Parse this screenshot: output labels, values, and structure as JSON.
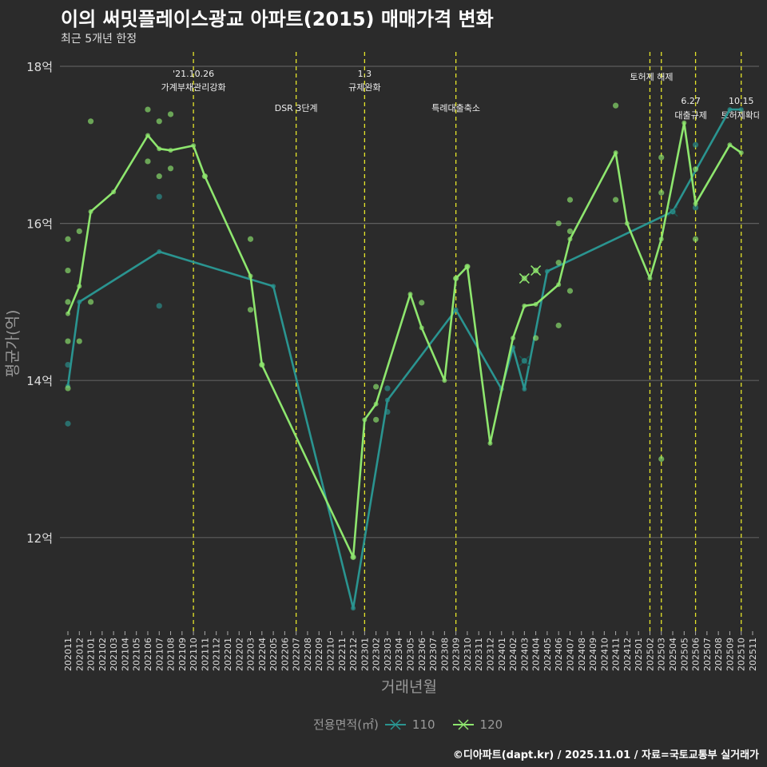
{
  "header": {
    "title": "이의 써밋플레이스광교 아파트(2015) 매매가격 변화",
    "subtitle": "최근 5개년 한정"
  },
  "caption": "©디아파트(dapt.kr) / 2025.11.01 / 자료=국토교통부 실거래가",
  "legend": {
    "title": "전용면적(㎡)",
    "items": [
      "110",
      "120"
    ]
  },
  "colors": {
    "s110": "#2a9490",
    "s120": "#8ee66e",
    "vline": "#e5e52a",
    "grid": "#5e5e5e",
    "bg": "#2b2b2b"
  },
  "chart_data": {
    "type": "line",
    "title": "이의 써밋플레이스광교 아파트(2015) 매매가격 변화",
    "xlabel": "거래년월",
    "ylabel": "평균가(억)",
    "ylim": [
      10.8,
      18.2
    ],
    "yticks": [
      12,
      14,
      16,
      18
    ],
    "ytick_labels": [
      "12억",
      "14억",
      "16억",
      "18억"
    ],
    "x_labels": [
      "202011",
      "202012",
      "202101",
      "202102",
      "202103",
      "202104",
      "202105",
      "202106",
      "202107",
      "202108",
      "202109",
      "202110",
      "202111",
      "202112",
      "202201",
      "202202",
      "202203",
      "202204",
      "202205",
      "202206",
      "202207",
      "202208",
      "202209",
      "202210",
      "202211",
      "202212",
      "202301",
      "202302",
      "202303",
      "202304",
      "202305",
      "202306",
      "202307",
      "202308",
      "202309",
      "202310",
      "202311",
      "202312",
      "202401",
      "202402",
      "202403",
      "202404",
      "202405",
      "202406",
      "202407",
      "202408",
      "202409",
      "202410",
      "202411",
      "202412",
      "202501",
      "202502",
      "202503",
      "202504",
      "202505",
      "202506",
      "202507",
      "202508",
      "202509",
      "202510",
      "202511"
    ],
    "series": [
      {
        "name": "110",
        "points": [
          [
            0,
            13.93
          ],
          [
            1,
            15.0
          ],
          [
            8,
            15.64
          ],
          [
            18,
            15.2
          ],
          [
            25,
            11.1
          ],
          [
            28,
            13.75
          ],
          [
            34,
            14.9
          ],
          [
            38,
            13.89
          ],
          [
            39,
            14.42
          ],
          [
            40,
            13.89
          ],
          [
            42,
            15.39
          ],
          [
            53,
            16.15
          ],
          [
            58,
            17.45
          ],
          [
            59,
            17.45
          ]
        ],
        "scatter": [
          [
            0,
            14.2
          ],
          [
            0,
            13.45
          ],
          [
            8,
            16.34
          ],
          [
            8,
            14.95
          ],
          [
            28,
            13.9
          ],
          [
            28,
            13.6
          ],
          [
            55,
            17.0
          ],
          [
            55,
            16.2
          ]
        ],
        "crosses": [
          [
            40,
            14.25
          ],
          [
            53,
            16.15
          ]
        ]
      },
      {
        "name": "120",
        "points": [
          [
            0,
            14.85
          ],
          [
            1,
            15.2
          ],
          [
            2,
            16.15
          ],
          [
            4,
            16.4
          ],
          [
            7,
            17.12
          ],
          [
            8,
            16.95
          ],
          [
            9,
            16.93
          ],
          [
            11,
            16.99
          ],
          [
            12,
            16.6
          ],
          [
            16,
            15.33
          ],
          [
            17,
            14.2
          ],
          [
            25,
            11.75
          ],
          [
            26,
            13.5
          ],
          [
            27,
            13.7
          ],
          [
            30,
            15.1
          ],
          [
            31,
            14.67
          ],
          [
            33,
            14.0
          ],
          [
            34,
            15.3
          ],
          [
            35,
            15.45
          ],
          [
            37,
            13.2
          ],
          [
            39,
            14.54
          ],
          [
            40,
            14.95
          ],
          [
            41,
            14.97
          ],
          [
            43,
            15.22
          ],
          [
            44,
            15.8
          ],
          [
            48,
            16.9
          ],
          [
            49,
            16.0
          ],
          [
            51,
            15.3
          ],
          [
            52,
            15.8
          ],
          [
            54,
            17.28
          ],
          [
            55,
            16.25
          ],
          [
            58,
            17.0
          ],
          [
            59,
            16.9
          ]
        ],
        "scatter": [
          [
            7,
            17.45
          ],
          [
            9,
            17.39
          ],
          [
            2,
            17.3
          ],
          [
            8,
            17.3
          ],
          [
            7,
            16.79
          ],
          [
            9,
            16.7
          ],
          [
            8,
            16.6
          ],
          [
            12,
            16.6
          ],
          [
            1,
            15.9
          ],
          [
            0,
            15.8
          ],
          [
            16,
            15.8
          ],
          [
            0,
            15.4
          ],
          [
            0,
            15.0
          ],
          [
            2,
            15.0
          ],
          [
            16,
            14.9
          ],
          [
            0,
            14.5
          ],
          [
            1,
            14.5
          ],
          [
            0,
            13.9
          ],
          [
            31,
            14.99
          ],
          [
            27,
            13.92
          ],
          [
            27,
            13.5
          ],
          [
            44,
            15.14
          ],
          [
            43,
            14.7
          ],
          [
            43,
            15.5
          ],
          [
            41,
            14.54
          ],
          [
            48,
            17.5
          ],
          [
            52,
            16.84
          ],
          [
            52,
            16.39
          ],
          [
            48,
            16.3
          ],
          [
            44,
            16.3
          ],
          [
            43,
            16.0
          ],
          [
            44,
            15.9
          ],
          [
            52,
            13.0
          ],
          [
            55,
            15.8
          ],
          [
            55,
            16.69
          ],
          [
            17,
            14.2
          ],
          [
            25,
            11.75
          ],
          [
            34,
            15.3
          ],
          [
            35,
            15.45
          ]
        ],
        "crosses": [
          [
            40,
            15.3
          ],
          [
            41,
            15.4
          ]
        ]
      }
    ],
    "events": [
      {
        "x": 11,
        "lines": [
          "'21.10.26",
          "가계부채관리강화"
        ]
      },
      {
        "x": 20,
        "lines": [
          "DSR 3단계"
        ]
      },
      {
        "x": 26,
        "lines": [
          "1.3",
          "규제완화"
        ]
      },
      {
        "x": 34,
        "lines": [
          "특례대출축소"
        ]
      },
      {
        "x": 51,
        "lines": [
          "토허제 해제"
        ]
      },
      {
        "x": 52,
        "lines": []
      },
      {
        "x": 55,
        "lines": [
          "6.27",
          "대출규제"
        ]
      },
      {
        "x": 59,
        "lines": [
          "10.15",
          "토허제확대"
        ]
      }
    ]
  }
}
